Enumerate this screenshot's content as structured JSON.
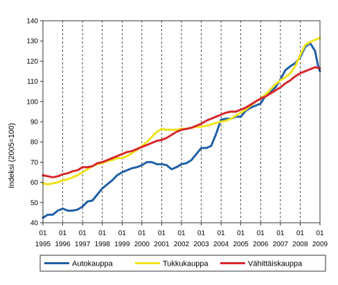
{
  "chart_data": {
    "type": "line",
    "title": "",
    "xlabel": "",
    "ylabel": "Indeksi (2005=100)",
    "ylim": [
      40,
      140
    ],
    "yticks": [
      40,
      50,
      60,
      70,
      80,
      90,
      100,
      110,
      120,
      130,
      140
    ],
    "x_tick_labels": [
      {
        "month": "01",
        "year": "1995"
      },
      {
        "month": "01",
        "year": "1996"
      },
      {
        "month": "01",
        "year": "1997"
      },
      {
        "month": "01",
        "year": "1998"
      },
      {
        "month": "01",
        "year": "1999"
      },
      {
        "month": "01",
        "year": "2000"
      },
      {
        "month": "01",
        "year": "2001"
      },
      {
        "month": "01",
        "year": "2002"
      },
      {
        "month": "01",
        "year": "2003"
      },
      {
        "month": "01",
        "year": "2004"
      },
      {
        "month": "01",
        "year": "2005"
      },
      {
        "month": "01",
        "year": "2006"
      },
      {
        "month": "01",
        "year": "2007"
      },
      {
        "month": "01",
        "year": "2008"
      },
      {
        "month": "01",
        "year": "2009"
      }
    ],
    "x_domain": [
      "1995-01",
      "2009-01"
    ],
    "grid": "vertical dashed lines at each year",
    "legend_position": "bottom",
    "series": [
      {
        "name": "Autokauppa",
        "color": "#1f5fa8",
        "points": [
          [
            "1995-01",
            42.5
          ],
          [
            "1995-04",
            44
          ],
          [
            "1995-07",
            44
          ],
          [
            "1995-10",
            46
          ],
          [
            "1996-01",
            47
          ],
          [
            "1996-04",
            46
          ],
          [
            "1996-07",
            46
          ],
          [
            "1996-10",
            46.5
          ],
          [
            "1997-01",
            48
          ],
          [
            "1997-04",
            50.5
          ],
          [
            "1997-07",
            51
          ],
          [
            "1997-10",
            54
          ],
          [
            "1998-01",
            57
          ],
          [
            "1998-04",
            59
          ],
          [
            "1998-07",
            61
          ],
          [
            "1998-10",
            63.5
          ],
          [
            "1999-01",
            65
          ],
          [
            "1999-04",
            66
          ],
          [
            "1999-07",
            67
          ],
          [
            "1999-10",
            67.5
          ],
          [
            "2000-01",
            68.5
          ],
          [
            "2000-04",
            70
          ],
          [
            "2000-07",
            70
          ],
          [
            "2000-10",
            69
          ],
          [
            "2001-01",
            69
          ],
          [
            "2001-04",
            68.5
          ],
          [
            "2001-07",
            66.5
          ],
          [
            "2001-10",
            67.5
          ],
          [
            "2002-01",
            69
          ],
          [
            "2002-04",
            69.5
          ],
          [
            "2002-07",
            71
          ],
          [
            "2002-10",
            74
          ],
          [
            "2003-01",
            77
          ],
          [
            "2003-04",
            77
          ],
          [
            "2003-07",
            78
          ],
          [
            "2003-10",
            84
          ],
          [
            "2004-01",
            91
          ],
          [
            "2004-04",
            91.5
          ],
          [
            "2004-07",
            91.5
          ],
          [
            "2004-10",
            92.5
          ],
          [
            "2005-01",
            92.5
          ],
          [
            "2005-04",
            95.5
          ],
          [
            "2005-07",
            97
          ],
          [
            "2005-10",
            98
          ],
          [
            "2006-01",
            99
          ],
          [
            "2006-04",
            103
          ],
          [
            "2006-07",
            105
          ],
          [
            "2006-10",
            107
          ],
          [
            "2007-01",
            111
          ],
          [
            "2007-04",
            115.5
          ],
          [
            "2007-07",
            117.5
          ],
          [
            "2007-10",
            119
          ],
          [
            "2008-01",
            122
          ],
          [
            "2008-04",
            127
          ],
          [
            "2008-07",
            129
          ],
          [
            "2008-10",
            125
          ],
          [
            "2008-12",
            117
          ],
          [
            "2009-01",
            115
          ]
        ]
      },
      {
        "name": "Tukkukauppa",
        "color": "#f0e21a",
        "points": [
          [
            "1995-01",
            59.5
          ],
          [
            "1995-04",
            59
          ],
          [
            "1995-07",
            59.5
          ],
          [
            "1995-10",
            60
          ],
          [
            "1996-01",
            61
          ],
          [
            "1996-04",
            61.5
          ],
          [
            "1996-07",
            62.5
          ],
          [
            "1996-10",
            63.5
          ],
          [
            "1997-01",
            65
          ],
          [
            "1997-04",
            66.5
          ],
          [
            "1997-07",
            68
          ],
          [
            "1997-10",
            69
          ],
          [
            "1998-01",
            69.5
          ],
          [
            "1998-04",
            70.5
          ],
          [
            "1998-07",
            71
          ],
          [
            "1998-10",
            72
          ],
          [
            "1999-01",
            72
          ],
          [
            "1999-04",
            73
          ],
          [
            "1999-07",
            74.5
          ],
          [
            "1999-10",
            76
          ],
          [
            "2000-01",
            78
          ],
          [
            "2000-04",
            80
          ],
          [
            "2000-07",
            82.5
          ],
          [
            "2000-10",
            85
          ],
          [
            "2001-01",
            86.5
          ],
          [
            "2001-04",
            86
          ],
          [
            "2001-07",
            86
          ],
          [
            "2001-10",
            86
          ],
          [
            "2002-01",
            86.5
          ],
          [
            "2002-04",
            86.5
          ],
          [
            "2002-07",
            87
          ],
          [
            "2002-10",
            87.5
          ],
          [
            "2003-01",
            87.5
          ],
          [
            "2003-04",
            88
          ],
          [
            "2003-07",
            88.5
          ],
          [
            "2003-10",
            89.5
          ],
          [
            "2004-01",
            90
          ],
          [
            "2004-04",
            90.5
          ],
          [
            "2004-07",
            91.5
          ],
          [
            "2004-10",
            93
          ],
          [
            "2005-01",
            94.5
          ],
          [
            "2005-04",
            96
          ],
          [
            "2005-07",
            98
          ],
          [
            "2005-10",
            100
          ],
          [
            "2006-01",
            101.5
          ],
          [
            "2006-04",
            103.5
          ],
          [
            "2006-07",
            106
          ],
          [
            "2006-10",
            108.5
          ],
          [
            "2007-01",
            110.5
          ],
          [
            "2007-04",
            112
          ],
          [
            "2007-07",
            114
          ],
          [
            "2007-10",
            117.5
          ],
          [
            "2008-01",
            123
          ],
          [
            "2008-04",
            128
          ],
          [
            "2008-07",
            129.5
          ],
          [
            "2008-10",
            130.5
          ],
          [
            "2009-01",
            131.5
          ]
        ]
      },
      {
        "name": "Vähittäiskauppa",
        "color": "#d7262b",
        "points": [
          [
            "1995-01",
            63.5
          ],
          [
            "1995-04",
            63
          ],
          [
            "1995-07",
            62.5
          ],
          [
            "1995-10",
            63
          ],
          [
            "1996-01",
            64
          ],
          [
            "1996-04",
            64.5
          ],
          [
            "1996-07",
            65.5
          ],
          [
            "1996-10",
            66
          ],
          [
            "1997-01",
            67.5
          ],
          [
            "1997-04",
            67.5
          ],
          [
            "1997-07",
            68
          ],
          [
            "1997-10",
            69.5
          ],
          [
            "1998-01",
            70
          ],
          [
            "1998-04",
            71
          ],
          [
            "1998-07",
            72
          ],
          [
            "1998-10",
            73
          ],
          [
            "1999-01",
            74
          ],
          [
            "1999-04",
            75
          ],
          [
            "1999-07",
            75.5
          ],
          [
            "1999-10",
            76.5
          ],
          [
            "2000-01",
            77.5
          ],
          [
            "2000-04",
            78.5
          ],
          [
            "2000-07",
            79.5
          ],
          [
            "2000-10",
            80.5
          ],
          [
            "2001-01",
            81
          ],
          [
            "2001-04",
            82
          ],
          [
            "2001-07",
            83.5
          ],
          [
            "2001-10",
            85
          ],
          [
            "2002-01",
            86
          ],
          [
            "2002-04",
            86.5
          ],
          [
            "2002-07",
            87
          ],
          [
            "2002-10",
            88
          ],
          [
            "2003-01",
            89
          ],
          [
            "2003-04",
            90.5
          ],
          [
            "2003-07",
            91.5
          ],
          [
            "2003-10",
            92.5
          ],
          [
            "2004-01",
            93.5
          ],
          [
            "2004-04",
            94.5
          ],
          [
            "2004-07",
            95
          ],
          [
            "2004-10",
            95
          ],
          [
            "2005-01",
            96
          ],
          [
            "2005-04",
            97
          ],
          [
            "2005-07",
            98.5
          ],
          [
            "2005-10",
            100
          ],
          [
            "2006-01",
            101.5
          ],
          [
            "2006-04",
            102.5
          ],
          [
            "2006-07",
            104
          ],
          [
            "2006-10",
            105.5
          ],
          [
            "2007-01",
            107
          ],
          [
            "2007-04",
            109
          ],
          [
            "2007-07",
            110.5
          ],
          [
            "2007-10",
            112.5
          ],
          [
            "2008-01",
            114
          ],
          [
            "2008-04",
            115
          ],
          [
            "2008-07",
            116
          ],
          [
            "2008-10",
            117
          ],
          [
            "2009-01",
            116.5
          ]
        ]
      }
    ]
  }
}
